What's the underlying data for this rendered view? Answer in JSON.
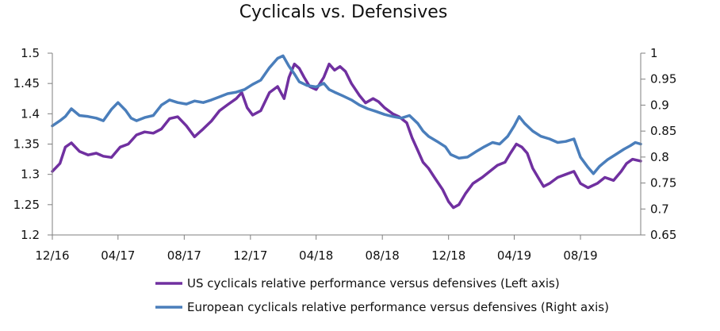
{
  "chart_data": {
    "type": "line",
    "title": "Cyclicals vs. Defensives",
    "x_tick_labels": [
      "12/16",
      "04/17",
      "08/17",
      "12/17",
      "04/18",
      "08/18",
      "12/18",
      "04/19",
      "08/19"
    ],
    "x_range": [
      "2016-12-01",
      "2019-11-20"
    ],
    "left_axis": {
      "ylim": [
        1.2,
        1.5
      ],
      "ticks": [
        "1.2",
        "1.25",
        "1.3",
        "1.35",
        "1.4",
        "1.45",
        "1.5"
      ]
    },
    "right_axis": {
      "ylim": [
        0.65,
        1.0
      ],
      "ticks": [
        "0.65",
        "0.7",
        "0.75",
        "0.8",
        "0.85",
        "0.9",
        "0.95",
        "1"
      ]
    },
    "legend_position": "bottom",
    "series": [
      {
        "name": "US cyclicals relative performance versus defensives (Left axis)",
        "axis": "left",
        "color": "#7030a0",
        "points": [
          [
            "2016-12-01",
            1.305
          ],
          [
            "2016-12-15",
            1.318
          ],
          [
            "2016-12-25",
            1.345
          ],
          [
            "2017-01-05",
            1.352
          ],
          [
            "2017-01-20",
            1.338
          ],
          [
            "2017-02-05",
            1.332
          ],
          [
            "2017-02-20",
            1.335
          ],
          [
            "2017-03-05",
            1.33
          ],
          [
            "2017-03-20",
            1.328
          ],
          [
            "2017-04-05",
            1.345
          ],
          [
            "2017-04-20",
            1.35
          ],
          [
            "2017-05-05",
            1.365
          ],
          [
            "2017-05-20",
            1.37
          ],
          [
            "2017-06-05",
            1.368
          ],
          [
            "2017-06-20",
            1.375
          ],
          [
            "2017-07-05",
            1.392
          ],
          [
            "2017-07-20",
            1.395
          ],
          [
            "2017-08-05",
            1.38
          ],
          [
            "2017-08-20",
            1.362
          ],
          [
            "2017-09-05",
            1.375
          ],
          [
            "2017-09-20",
            1.388
          ],
          [
            "2017-10-05",
            1.405
          ],
          [
            "2017-10-20",
            1.415
          ],
          [
            "2017-11-05",
            1.425
          ],
          [
            "2017-11-15",
            1.435
          ],
          [
            "2017-11-25",
            1.41
          ],
          [
            "2017-12-05",
            1.398
          ],
          [
            "2017-12-20",
            1.405
          ],
          [
            "2018-01-05",
            1.435
          ],
          [
            "2018-01-20",
            1.445
          ],
          [
            "2018-02-01",
            1.425
          ],
          [
            "2018-02-10",
            1.46
          ],
          [
            "2018-02-20",
            1.482
          ],
          [
            "2018-03-01",
            1.475
          ],
          [
            "2018-03-10",
            1.46
          ],
          [
            "2018-03-20",
            1.445
          ],
          [
            "2018-04-01",
            1.44
          ],
          [
            "2018-04-15",
            1.46
          ],
          [
            "2018-04-25",
            1.482
          ],
          [
            "2018-05-05",
            1.472
          ],
          [
            "2018-05-15",
            1.478
          ],
          [
            "2018-05-25",
            1.47
          ],
          [
            "2018-06-05",
            1.45
          ],
          [
            "2018-06-20",
            1.43
          ],
          [
            "2018-07-01",
            1.418
          ],
          [
            "2018-07-15",
            1.425
          ],
          [
            "2018-07-25",
            1.42
          ],
          [
            "2018-08-05",
            1.41
          ],
          [
            "2018-08-20",
            1.4
          ],
          [
            "2018-09-01",
            1.395
          ],
          [
            "2018-09-15",
            1.385
          ],
          [
            "2018-09-25",
            1.36
          ],
          [
            "2018-10-05",
            1.34
          ],
          [
            "2018-10-15",
            1.32
          ],
          [
            "2018-10-25",
            1.31
          ],
          [
            "2018-11-05",
            1.295
          ],
          [
            "2018-11-20",
            1.275
          ],
          [
            "2018-12-01",
            1.255
          ],
          [
            "2018-12-10",
            1.245
          ],
          [
            "2018-12-20",
            1.25
          ],
          [
            "2019-01-01",
            1.268
          ],
          [
            "2019-01-15",
            1.285
          ],
          [
            "2019-02-01",
            1.295
          ],
          [
            "2019-02-15",
            1.305
          ],
          [
            "2019-03-01",
            1.315
          ],
          [
            "2019-03-15",
            1.32
          ],
          [
            "2019-03-25",
            1.335
          ],
          [
            "2019-04-05",
            1.35
          ],
          [
            "2019-04-15",
            1.345
          ],
          [
            "2019-04-25",
            1.335
          ],
          [
            "2019-05-05",
            1.31
          ],
          [
            "2019-05-15",
            1.295
          ],
          [
            "2019-05-25",
            1.28
          ],
          [
            "2019-06-05",
            1.285
          ],
          [
            "2019-06-20",
            1.295
          ],
          [
            "2019-07-05",
            1.3
          ],
          [
            "2019-07-20",
            1.305
          ],
          [
            "2019-08-01",
            1.285
          ],
          [
            "2019-08-15",
            1.278
          ],
          [
            "2019-09-01",
            1.285
          ],
          [
            "2019-09-15",
            1.295
          ],
          [
            "2019-10-01",
            1.29
          ],
          [
            "2019-10-15",
            1.305
          ],
          [
            "2019-10-25",
            1.318
          ],
          [
            "2019-11-05",
            1.325
          ],
          [
            "2019-11-20",
            1.322
          ]
        ]
      },
      {
        "name": "European cyclicals relative performance versus defensives (Right axis)",
        "axis": "right",
        "color": "#4a7ebb",
        "points": [
          [
            "2016-12-01",
            0.86
          ],
          [
            "2016-12-15",
            0.87
          ],
          [
            "2016-12-25",
            0.878
          ],
          [
            "2017-01-05",
            0.893
          ],
          [
            "2017-01-20",
            0.88
          ],
          [
            "2017-02-05",
            0.878
          ],
          [
            "2017-02-20",
            0.875
          ],
          [
            "2017-03-05",
            0.87
          ],
          [
            "2017-03-20",
            0.892
          ],
          [
            "2017-04-01",
            0.905
          ],
          [
            "2017-04-15",
            0.89
          ],
          [
            "2017-04-25",
            0.875
          ],
          [
            "2017-05-05",
            0.87
          ],
          [
            "2017-05-20",
            0.876
          ],
          [
            "2017-06-05",
            0.88
          ],
          [
            "2017-06-20",
            0.9
          ],
          [
            "2017-07-05",
            0.91
          ],
          [
            "2017-07-20",
            0.905
          ],
          [
            "2017-08-05",
            0.902
          ],
          [
            "2017-08-20",
            0.908
          ],
          [
            "2017-09-05",
            0.905
          ],
          [
            "2017-09-20",
            0.91
          ],
          [
            "2017-10-05",
            0.916
          ],
          [
            "2017-10-20",
            0.922
          ],
          [
            "2017-11-05",
            0.925
          ],
          [
            "2017-11-20",
            0.93
          ],
          [
            "2017-12-05",
            0.94
          ],
          [
            "2017-12-20",
            0.948
          ],
          [
            "2018-01-05",
            0.972
          ],
          [
            "2018-01-20",
            0.99
          ],
          [
            "2018-01-30",
            0.995
          ],
          [
            "2018-02-10",
            0.975
          ],
          [
            "2018-02-20",
            0.96
          ],
          [
            "2018-03-01",
            0.945
          ],
          [
            "2018-03-15",
            0.938
          ],
          [
            "2018-04-01",
            0.935
          ],
          [
            "2018-04-15",
            0.942
          ],
          [
            "2018-04-25",
            0.93
          ],
          [
            "2018-05-05",
            0.925
          ],
          [
            "2018-05-20",
            0.918
          ],
          [
            "2018-06-05",
            0.91
          ],
          [
            "2018-06-20",
            0.9
          ],
          [
            "2018-07-05",
            0.893
          ],
          [
            "2018-07-20",
            0.888
          ],
          [
            "2018-08-05",
            0.882
          ],
          [
            "2018-08-20",
            0.878
          ],
          [
            "2018-09-05",
            0.875
          ],
          [
            "2018-09-20",
            0.88
          ],
          [
            "2018-10-05",
            0.865
          ],
          [
            "2018-10-15",
            0.85
          ],
          [
            "2018-10-25",
            0.84
          ],
          [
            "2018-11-10",
            0.83
          ],
          [
            "2018-11-25",
            0.82
          ],
          [
            "2018-12-05",
            0.805
          ],
          [
            "2018-12-20",
            0.798
          ],
          [
            "2019-01-05",
            0.8
          ],
          [
            "2019-01-20",
            0.81
          ],
          [
            "2019-02-05",
            0.82
          ],
          [
            "2019-02-20",
            0.828
          ],
          [
            "2019-03-05",
            0.825
          ],
          [
            "2019-03-20",
            0.84
          ],
          [
            "2019-04-01",
            0.86
          ],
          [
            "2019-04-10",
            0.878
          ],
          [
            "2019-04-20",
            0.865
          ],
          [
            "2019-05-05",
            0.85
          ],
          [
            "2019-05-20",
            0.84
          ],
          [
            "2019-06-05",
            0.835
          ],
          [
            "2019-06-20",
            0.828
          ],
          [
            "2019-07-05",
            0.83
          ],
          [
            "2019-07-20",
            0.835
          ],
          [
            "2019-08-01",
            0.8
          ],
          [
            "2019-08-15",
            0.78
          ],
          [
            "2019-08-25",
            0.768
          ],
          [
            "2019-09-05",
            0.782
          ],
          [
            "2019-09-20",
            0.795
          ],
          [
            "2019-10-05",
            0.805
          ],
          [
            "2019-10-20",
            0.815
          ],
          [
            "2019-11-01",
            0.822
          ],
          [
            "2019-11-10",
            0.828
          ],
          [
            "2019-11-20",
            0.825
          ]
        ]
      }
    ]
  }
}
